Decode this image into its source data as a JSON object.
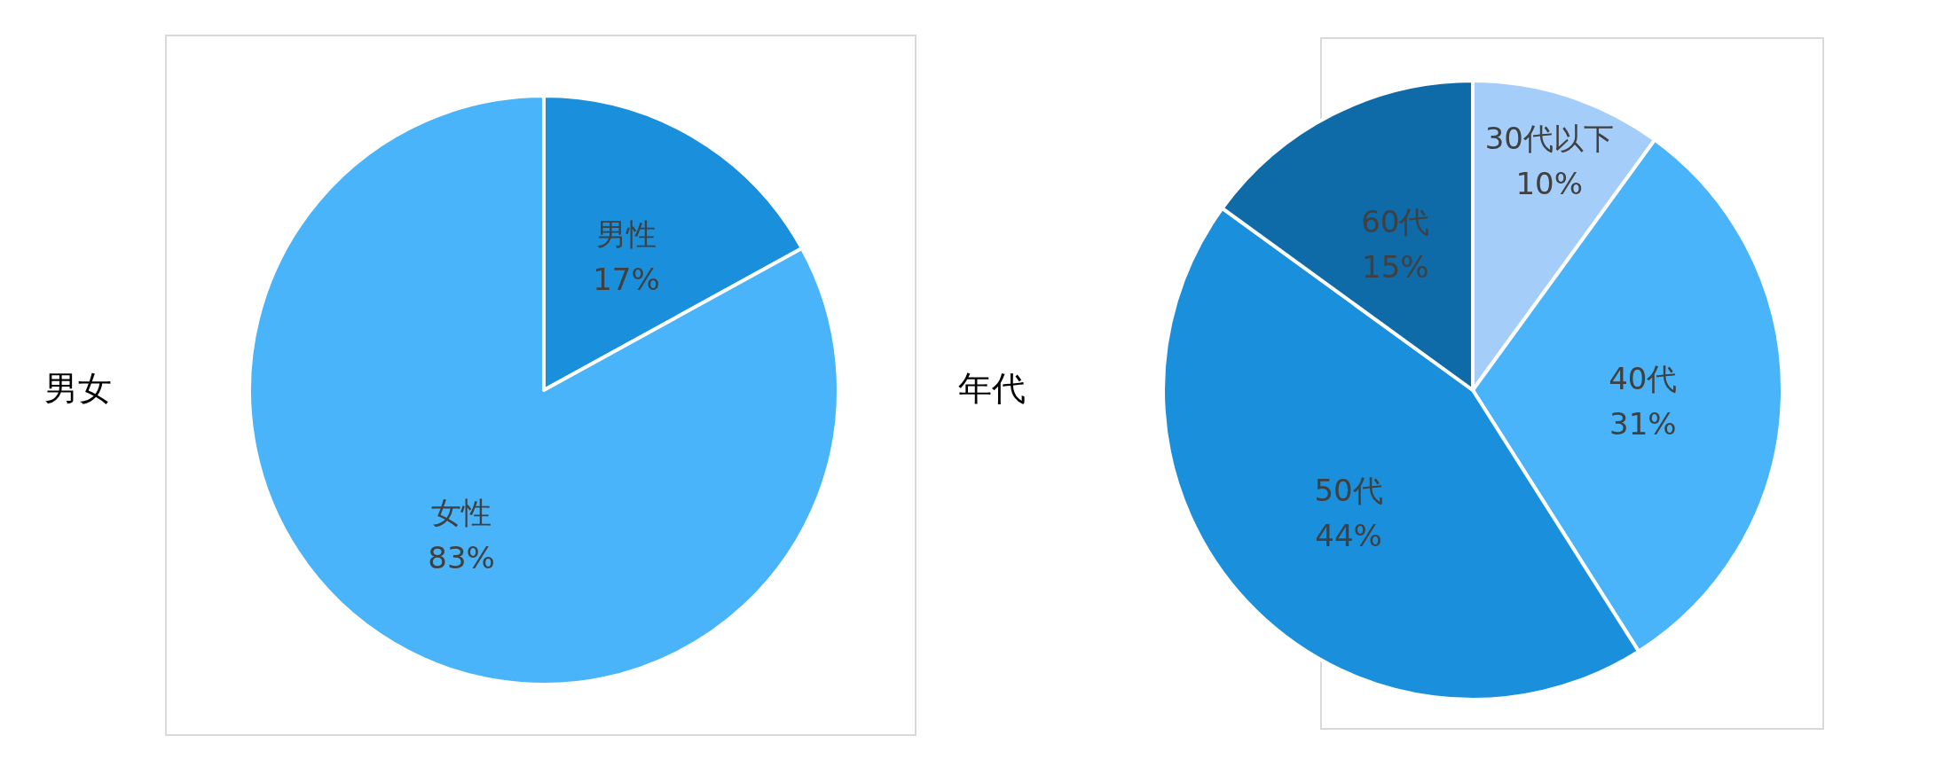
{
  "chart_data": [
    {
      "type": "pie",
      "title": "男女",
      "categories": [
        "男性",
        "女性"
      ],
      "values": [
        17,
        83
      ],
      "colors": [
        "#1a8fdc",
        "#49b4f9"
      ],
      "value_labels": [
        "17%",
        "83%"
      ]
    },
    {
      "type": "pie",
      "title": "年代",
      "categories": [
        "30代以下",
        "40代",
        "50代",
        "60代"
      ],
      "values": [
        10,
        31,
        44,
        15
      ],
      "colors": [
        "#a5cdf9",
        "#49b4f9",
        "#1a8fdc",
        "#0f6aa8"
      ],
      "value_labels": [
        "10%",
        "31%",
        "44%",
        "15%"
      ]
    }
  ]
}
